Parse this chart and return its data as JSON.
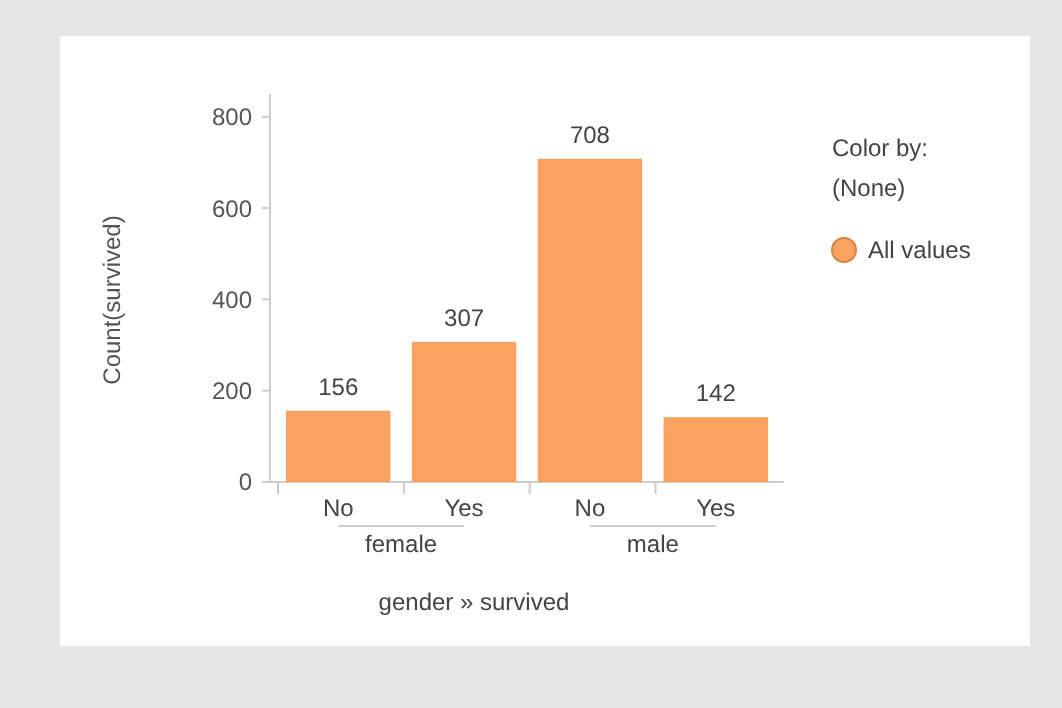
{
  "chart_data": {
    "type": "bar",
    "categories": [
      "No",
      "Yes",
      "No",
      "Yes"
    ],
    "series": [
      {
        "name": "All values",
        "color": "#fba261",
        "values": [
          156,
          307,
          708,
          142
        ]
      }
    ],
    "ylim": [
      0,
      850
    ],
    "yticks": [
      0,
      200,
      400,
      600,
      800
    ],
    "ylabel": "Count(survived)",
    "xlabel": "gender » survived",
    "legend_title": "Color by:",
    "legend": "top right",
    "data_labels": true,
    "grid": false,
    "annotations": [
      "female",
      "male",
      "(None)"
    ]
  }
}
